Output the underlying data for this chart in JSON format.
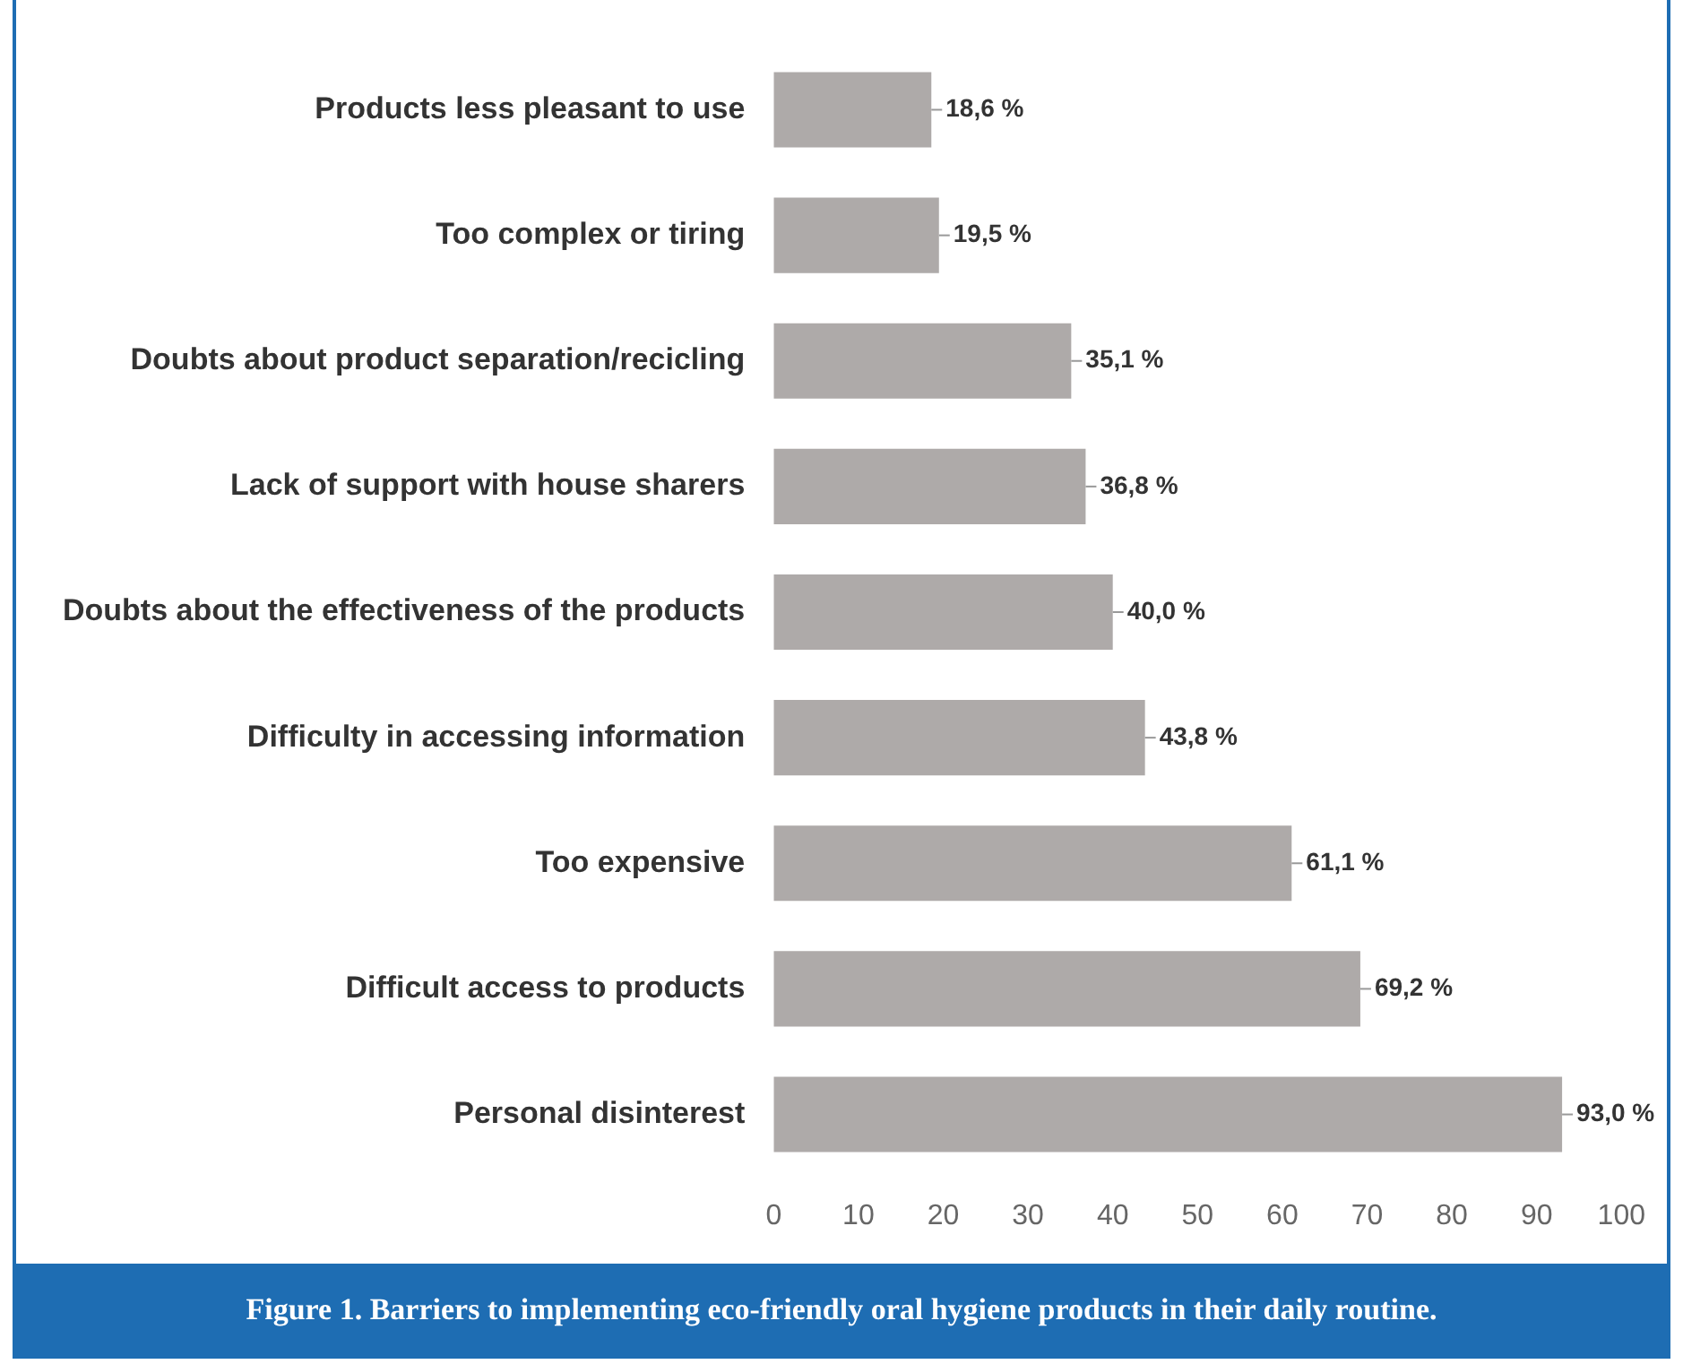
{
  "chart_data": {
    "type": "bar",
    "orientation": "horizontal",
    "title": "Figure 1. Barriers to implementing eco-friendly oral hygiene products in their daily routine.",
    "categories": [
      "Products less pleasant to use",
      "Too complex or tiring",
      "Doubts about product separation/recicling",
      "Lack of support with house sharers",
      "Doubts about the effectiveness of the products",
      "Difficulty in accessing information",
      "Too expensive",
      "Difficult access to products",
      "Personal disinterest"
    ],
    "values": [
      18.6,
      19.5,
      35.1,
      36.8,
      40.0,
      43.8,
      61.1,
      69.2,
      93.0
    ],
    "value_labels": [
      "18,6 %",
      "19,5 %",
      "35,1 %",
      "36,8 %",
      "40,0 %",
      "43,8 %",
      "61,1 %",
      "69,2 %",
      "93,0 %"
    ],
    "color": "#aeaaa9",
    "xlim": [
      0,
      100
    ],
    "xticks": [
      0,
      10,
      20,
      30,
      40,
      50,
      60,
      70,
      80,
      90,
      100
    ],
    "grid": false
  }
}
